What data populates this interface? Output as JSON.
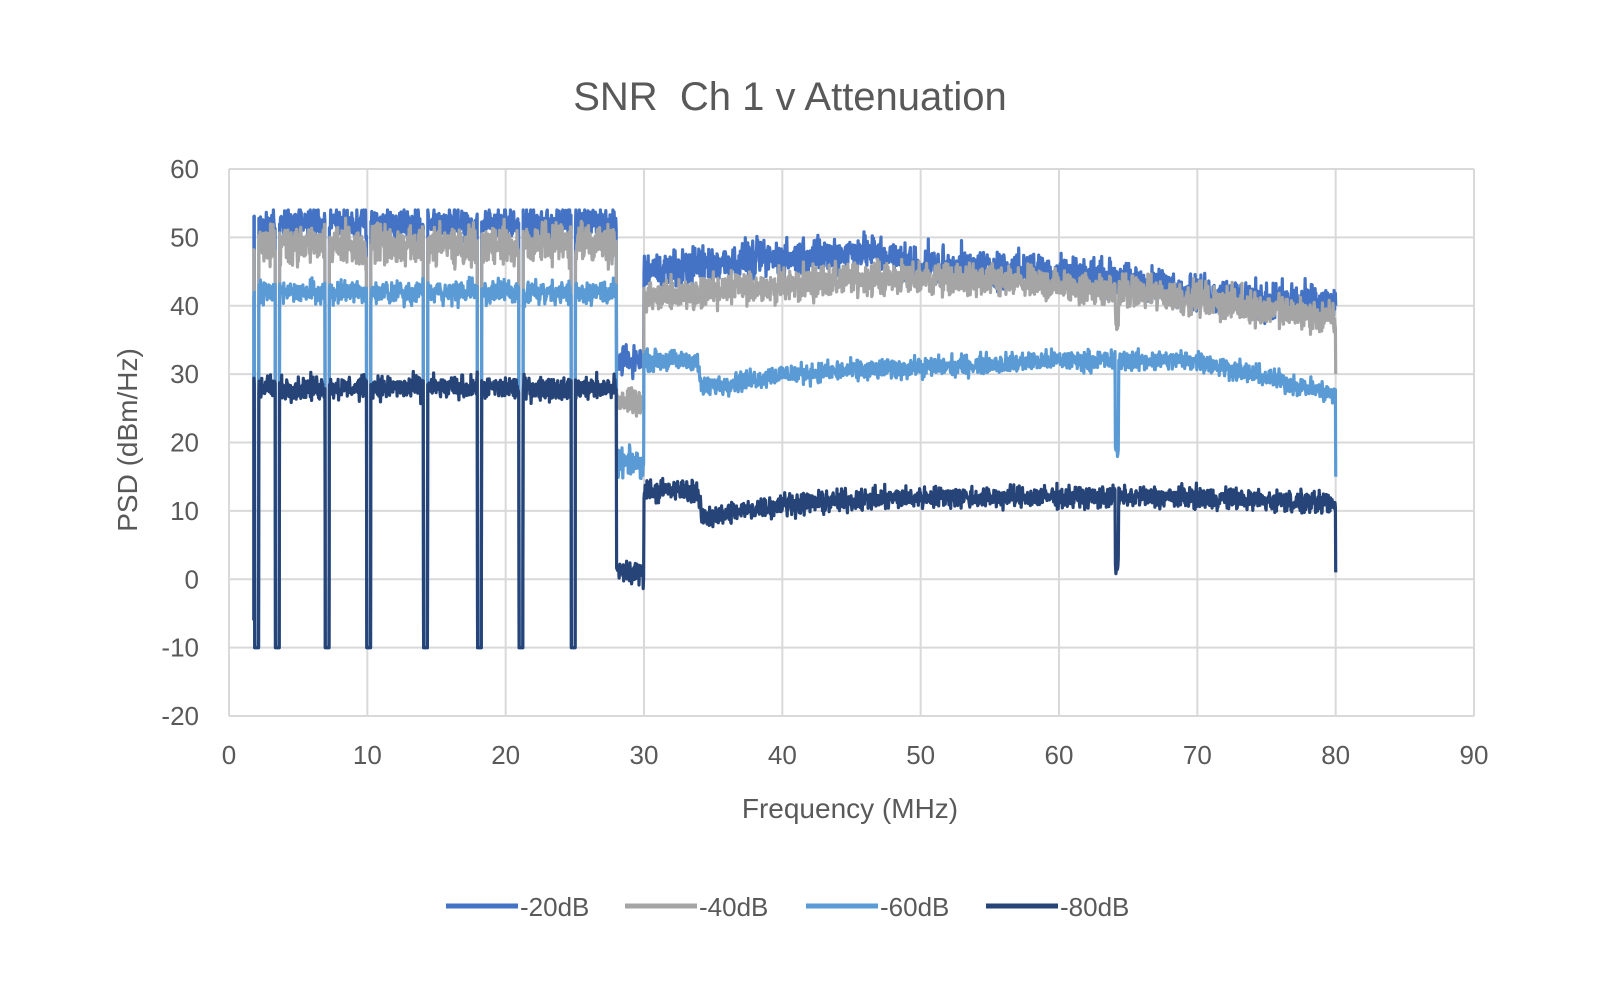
{
  "chart_data": {
    "type": "line",
    "title": "SNR  Ch 1 v Attenuation",
    "xlabel": "Frequency (MHz)",
    "ylabel": "PSD (dBm/Hz)",
    "xlim": [
      0,
      90
    ],
    "ylim": [
      -20,
      60
    ],
    "xticks": [
      "0",
      "10",
      "20",
      "30",
      "40",
      "50",
      "60",
      "70",
      "80",
      "90"
    ],
    "yticks": [
      "-20",
      "-10",
      "0",
      "10",
      "20",
      "30",
      "40",
      "50",
      "60"
    ],
    "grid": true,
    "legend_position": "bottom",
    "dips_mhz": [
      2.0,
      3.5,
      7.1,
      10.1,
      14.2,
      18.1,
      21.1,
      24.9
    ],
    "series": [
      {
        "name": "-20dB",
        "color": "#4472c4",
        "band_low_mhz": [
          1.8,
          28.0
        ],
        "band_low_level": 52,
        "band_low_noise": 2.0,
        "transition_mhz": [
          28.0,
          30.0
        ],
        "transition_level": 32,
        "band_high_points": [
          [
            30,
            45
          ],
          [
            34,
            46
          ],
          [
            40,
            47
          ],
          [
            46,
            48
          ],
          [
            50,
            46
          ],
          [
            60,
            45
          ],
          [
            70,
            42
          ],
          [
            80,
            40
          ]
        ],
        "band_high_noise": 2.2,
        "notch_64_depth": 0,
        "end_value": 40
      },
      {
        "name": "-40dB",
        "color": "#a5a5a5",
        "band_low_mhz": [
          1.8,
          28.0
        ],
        "band_low_level": 49,
        "band_low_noise": 2.4,
        "transition_mhz": [
          28.0,
          30.0
        ],
        "transition_level": 26,
        "band_high_points": [
          [
            30,
            41
          ],
          [
            34,
            42
          ],
          [
            40,
            43
          ],
          [
            46,
            44
          ],
          [
            50,
            44
          ],
          [
            60,
            43
          ],
          [
            70,
            41
          ],
          [
            80,
            38
          ]
        ],
        "band_high_noise": 2.0,
        "notch_64_depth": 4,
        "end_value": 30
      },
      {
        "name": "-60dB",
        "color": "#5b9bd5",
        "band_low_mhz": [
          1.8,
          28.0
        ],
        "band_low_level": 42,
        "band_low_noise": 1.4,
        "transition_mhz": [
          28.0,
          30.0
        ],
        "transition_level": 17,
        "band_high_points": [
          [
            30,
            32
          ],
          [
            33.8,
            32
          ],
          [
            34.2,
            28
          ],
          [
            40,
            30
          ],
          [
            50,
            31
          ],
          [
            60,
            32
          ],
          [
            64,
            32
          ],
          [
            70,
            32
          ],
          [
            80,
            27
          ]
        ],
        "band_high_noise": 1.2,
        "notch_64_depth": 13,
        "end_value": 15
      },
      {
        "name": "-80dB",
        "color": "#264478",
        "band_low_mhz": [
          1.8,
          28.0
        ],
        "band_low_level": 28,
        "band_low_noise": 1.4,
        "transition_mhz": [
          28.0,
          30.0
        ],
        "transition_level": 1,
        "band_high_points": [
          [
            30,
            13
          ],
          [
            33.8,
            13
          ],
          [
            34.2,
            9
          ],
          [
            40,
            11
          ],
          [
            50,
            12
          ],
          [
            60,
            12
          ],
          [
            64,
            12
          ],
          [
            70,
            12
          ],
          [
            80,
            11
          ]
        ],
        "band_high_noise": 1.3,
        "notch_64_depth": 10,
        "end_value": 1
      }
    ]
  }
}
